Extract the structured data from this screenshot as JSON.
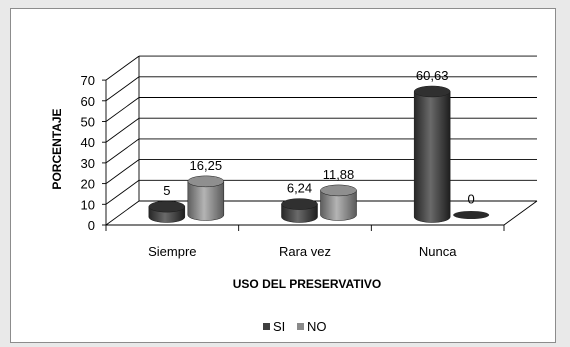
{
  "chart_data": {
    "type": "bar",
    "style": "3d-cylinder",
    "categories": [
      "Siempre",
      "Rara vez",
      "Nunca"
    ],
    "series": [
      {
        "name": "SI",
        "values": [
          5,
          6.24,
          60.63
        ],
        "labels": [
          "5",
          "6,24",
          "60,63"
        ],
        "color": "#3f3f3f"
      },
      {
        "name": "NO",
        "values": [
          16.25,
          11.88,
          0
        ],
        "labels": [
          "16,25",
          "11,88",
          "0"
        ],
        "color": "#8a8a8a"
      }
    ],
    "xlabel": "USO DEL PRESERVATIVO",
    "ylabel": "PORCENTAJE",
    "ylim": [
      0,
      70
    ],
    "yticks": [
      "0",
      "10",
      "20",
      "30",
      "40",
      "50",
      "60",
      "70"
    ],
    "grid": true,
    "legend": "bottom"
  }
}
